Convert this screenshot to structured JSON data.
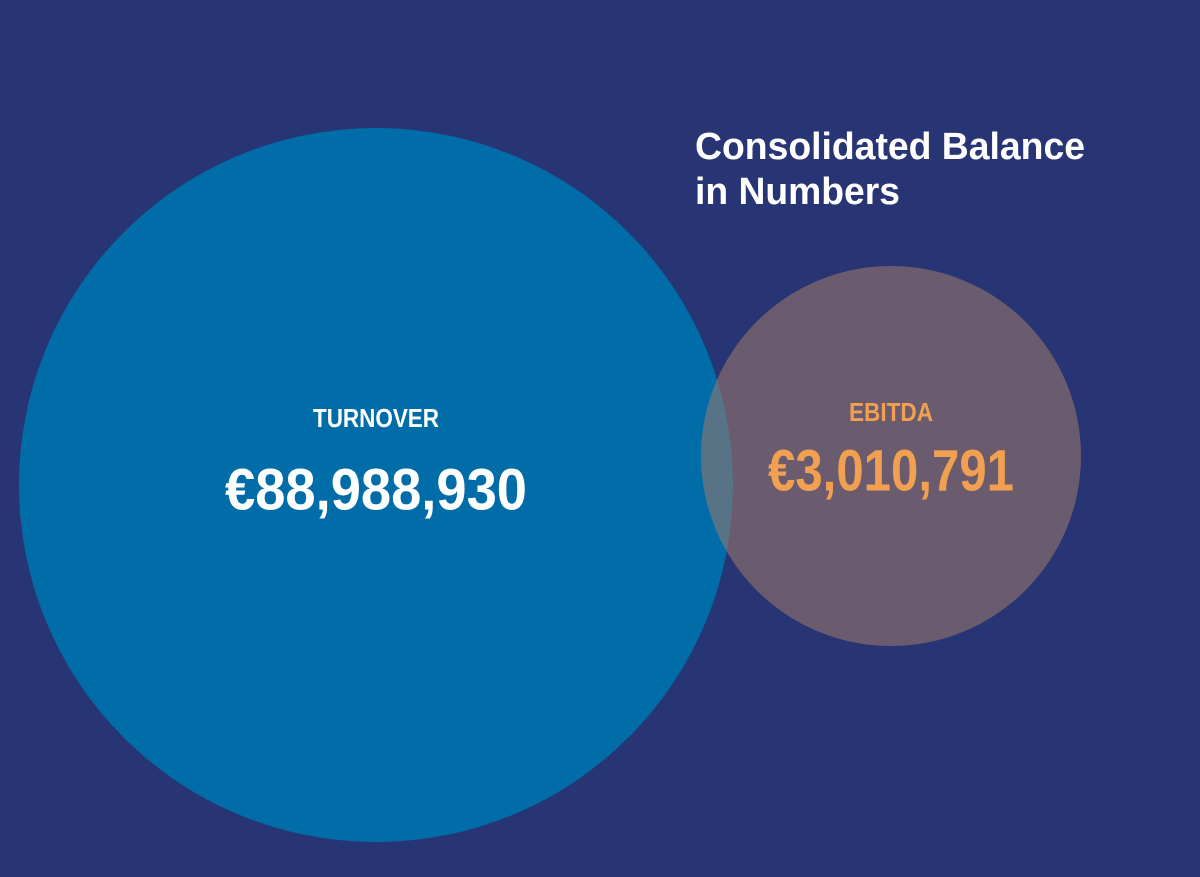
{
  "title": "Consolidated Balance in Numbers",
  "items": [
    {
      "label": "TURNOVER",
      "value": "€88,988,930"
    },
    {
      "label": "EBITDA",
      "value": "€3,010,791"
    }
  ]
}
